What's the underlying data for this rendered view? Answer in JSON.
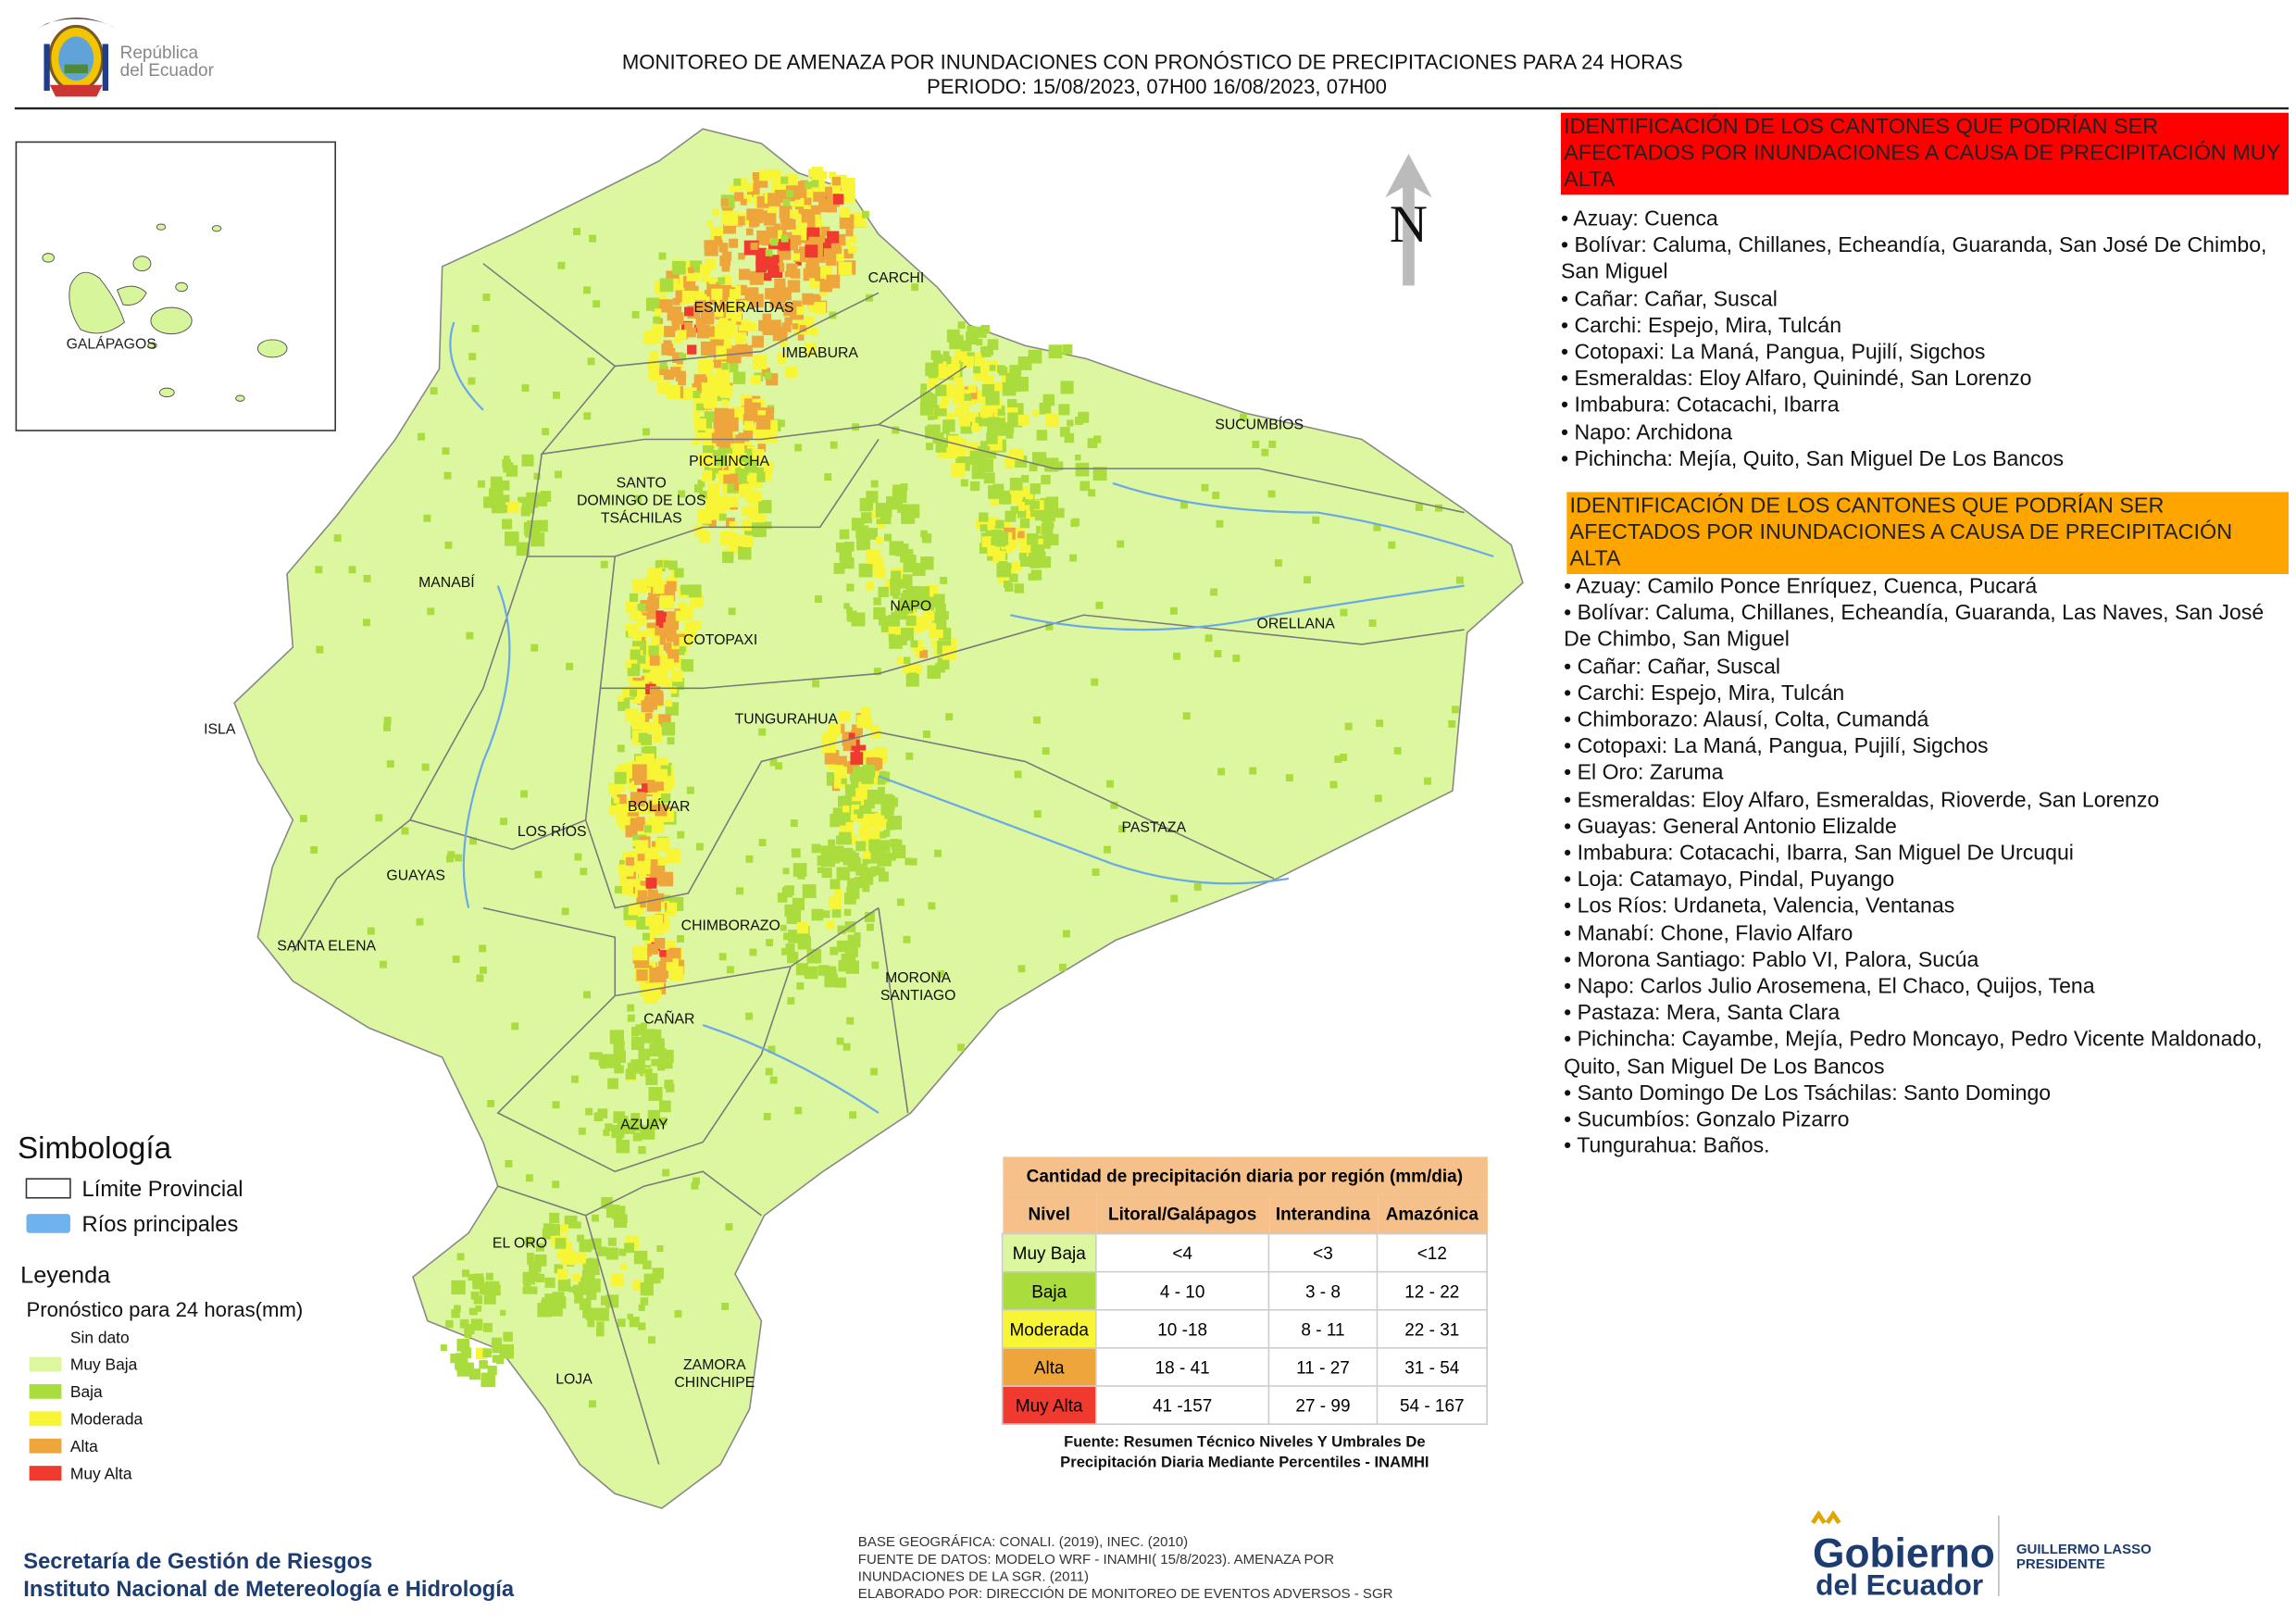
{
  "header": {
    "logo_lines": [
      "República",
      "del Ecuador"
    ],
    "title": "MONITOREO DE AMENAZA POR INUNDACIONES  CON PRONÓSTICO DE  PRECIPITACIONES PARA 24 HORAS",
    "period": "PERIODO: 15/08/2023, 07H00 16/08/2023, 07H00"
  },
  "map": {
    "inset_label": "GALÁPAGOS",
    "north": "N",
    "provinces": [
      {
        "lines": [
          "CARCHI"
        ]
      },
      {
        "lines": [
          "ESMERALDAS"
        ]
      },
      {
        "lines": [
          "IMBABURA"
        ]
      },
      {
        "lines": [
          "SUCUMBÍOS"
        ]
      },
      {
        "lines": [
          "PICHINCHA"
        ]
      },
      {
        "lines": [
          "SANTO",
          "DOMINGO DE LOS",
          "TSÁCHILAS"
        ]
      },
      {
        "lines": [
          "MANABÍ"
        ]
      },
      {
        "lines": [
          "NAPO"
        ]
      },
      {
        "lines": [
          "ORELLANA"
        ]
      },
      {
        "lines": [
          "COTOPAXI"
        ]
      },
      {
        "lines": [
          "ISLA"
        ]
      },
      {
        "lines": [
          "TUNGURAHUA"
        ]
      },
      {
        "lines": [
          "BOLÍVAR"
        ]
      },
      {
        "lines": [
          "LOS RÍOS"
        ]
      },
      {
        "lines": [
          "PASTAZA"
        ]
      },
      {
        "lines": [
          "GUAYAS"
        ]
      },
      {
        "lines": [
          "CHIMBORAZO"
        ]
      },
      {
        "lines": [
          "SANTA ELENA"
        ]
      },
      {
        "lines": [
          "MORONA",
          "SANTIAGO"
        ]
      },
      {
        "lines": [
          "CAÑAR"
        ]
      },
      {
        "lines": [
          "AZUAY"
        ]
      },
      {
        "lines": [
          "EL ORO"
        ]
      },
      {
        "lines": [
          "ZAMORA",
          "CHINCHIPE"
        ]
      },
      {
        "lines": [
          "LOJA"
        ]
      }
    ]
  },
  "very_high": {
    "title": "IDENTIFICACIÓN DE LOS CANTONES QUE PODRÍAN SER AFECTADOS POR INUNDACIONES  A CAUSA DE PRECIPITACIÓN MUY ALTA",
    "items": [
      "• Azuay: Cuenca",
      "• Bolívar: Caluma, Chillanes, Echeandía, Guaranda, San José De Chimbo, San Miguel",
      "• Cañar: Cañar, Suscal",
      "• Carchi: Espejo, Mira, Tulcán",
      "• Cotopaxi: La Maná, Pangua, Pujilí, Sigchos",
      "• Esmeraldas: Eloy Alfaro, Quinindé, San Lorenzo",
      "• Imbabura: Cotacachi, Ibarra",
      "• Napo: Archidona",
      "• Pichincha: Mejía, Quito, San Miguel De Los Bancos"
    ]
  },
  "high": {
    "title": "IDENTIFICACIÓN DE LOS CANTONES QUE  PODRÍAN SER AFECTADOS POR INUNDACIONES  A CAUSA DE PRECIPITACIÓN ALTA",
    "items": [
      "• Azuay: Camilo Ponce Enríquez, Cuenca, Pucará",
      "• Bolívar: Caluma, Chillanes, Echeandía, Guaranda, Las Naves, San José De Chimbo, San Miguel",
      "• Cañar: Cañar, Suscal",
      "• Carchi: Espejo, Mira, Tulcán",
      "• Chimborazo: Alausí, Colta, Cumandá",
      "• Cotopaxi: La Maná, Pangua, Pujilí, Sigchos",
      "• El Oro: Zaruma",
      "• Esmeraldas: Eloy Alfaro, Esmeraldas, Rioverde, San Lorenzo",
      "• Guayas: General Antonio Elizalde",
      "• Imbabura: Cotacachi, Ibarra, San Miguel De Urcuqui",
      "• Loja: Catamayo, Pindal, Puyango",
      "• Los Ríos: Urdaneta, Valencia, Ventanas",
      "• Manabí: Chone, Flavio Alfaro",
      "• Morona Santiago: Pablo VI, Palora, Sucúa",
      "• Napo: Carlos Julio Arosemena, El Chaco, Quijos, Tena",
      "• Pastaza: Mera, Santa Clara",
      "• Pichincha: Cayambe, Mejía, Pedro Moncayo, Pedro Vicente Maldonado, Quito, San Miguel De Los Bancos",
      "• Santo Domingo De Los Tsáchilas: Santo Domingo",
      "• Sucumbíos: Gonzalo Pizarro",
      "• Tungurahua: Baños."
    ]
  },
  "symbology": {
    "title": "Simbología",
    "items": [
      "Límite Provincial",
      "Ríos principales"
    ]
  },
  "legend": {
    "title": "Leyenda",
    "subtitle": "Pronóstico para 24 horas(mm)",
    "items": [
      {
        "label": "Sin dato",
        "color": "#ffffff"
      },
      {
        "label": "Muy Baja",
        "color": "#dcf7a0"
      },
      {
        "label": "Baja",
        "color": "#a9dc3c"
      },
      {
        "label": "Moderada",
        "color": "#f7f536"
      },
      {
        "label": "Alta",
        "color": "#eea63c"
      },
      {
        "label": "Muy Alta",
        "color": "#f03a2f"
      }
    ]
  },
  "table": {
    "title": "Cantidad de precipitación diaria por región (mm/dia)",
    "headers": [
      "Nivel",
      "Litoral/Galápagos",
      "Interandina",
      "Amazónica"
    ],
    "rows": [
      [
        "Muy Baja",
        "<4",
        "<3",
        "<12"
      ],
      [
        "Baja",
        "4 - 10",
        "3 - 8",
        "12 - 22"
      ],
      [
        "Moderada",
        "10 -18",
        "8 - 11",
        "22 - 31"
      ],
      [
        "Alta",
        "18 - 41",
        "11 - 27",
        "31 - 54"
      ],
      [
        "Muy Alta",
        "41 -157",
        "27 - 99",
        "54 - 167"
      ]
    ],
    "source": [
      "Fuente: Resumen Técnico Niveles Y Umbrales De",
      "Precipitación Diaria Mediante Percentiles - INAMHI"
    ]
  },
  "footer": {
    "org_lines": [
      "Secretaría de Gestión de Riesgos",
      "Instituto Nacional de Metereología e Hidrología"
    ],
    "credits": [
      "BASE GEOGRÁFICA: CONALI. (2019), INEC. (2010)",
      "FUENTE DE DATOS: MODELO WRF - INAMHI( 15/8/2023).  AMENAZA POR",
      "INUNDACIONES DE LA SGR. (2011)",
      "ELABORADO POR: DIRECCIÓN DE MONITOREO DE EVENTOS ADVERSOS - SGR"
    ],
    "gov_lines": [
      "Gobierno",
      "del Ecuador"
    ],
    "president_lines": [
      "GUILLERMO LASSO",
      "PRESIDENTE"
    ]
  }
}
